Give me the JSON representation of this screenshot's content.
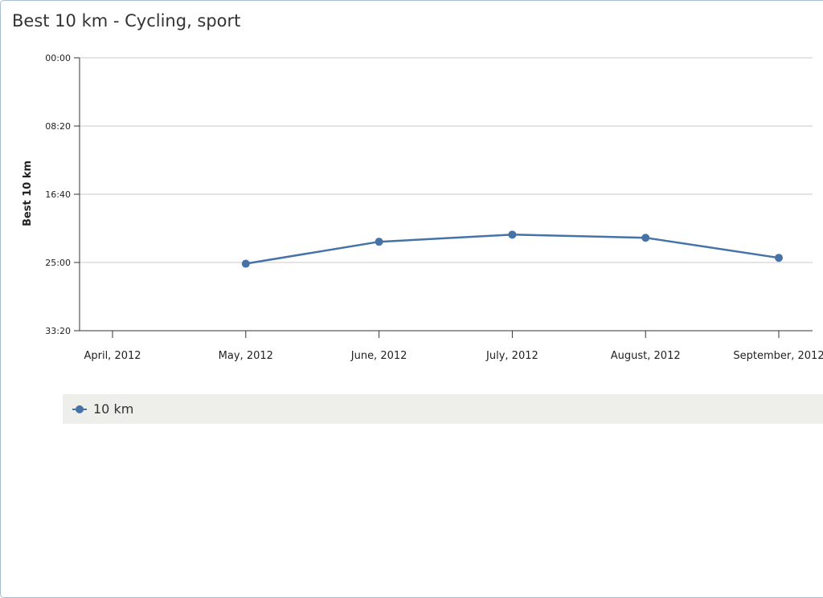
{
  "panel": {
    "title": "Best 10 km - Cycling, sport"
  },
  "chart_data": {
    "type": "line",
    "title": "Best 10 km - Cycling, sport",
    "ylabel": "Best 10 km",
    "xlabel": "",
    "y_reversed": true,
    "ylim": [
      "00:00",
      "33:20"
    ],
    "y_ticks": [
      "00:00",
      "08:20",
      "16:40",
      "25:00",
      "33:20"
    ],
    "categories": [
      "April, 2012",
      "May, 2012",
      "June, 2012",
      "July, 2012",
      "August, 2012",
      "September, 2012"
    ],
    "series": [
      {
        "name": "10 km",
        "color": "#4572a7",
        "values": [
          null,
          "25:09",
          "22:28",
          "21:36",
          "21:59",
          "24:26"
        ]
      }
    ],
    "grid": true,
    "legend": "bottom"
  }
}
